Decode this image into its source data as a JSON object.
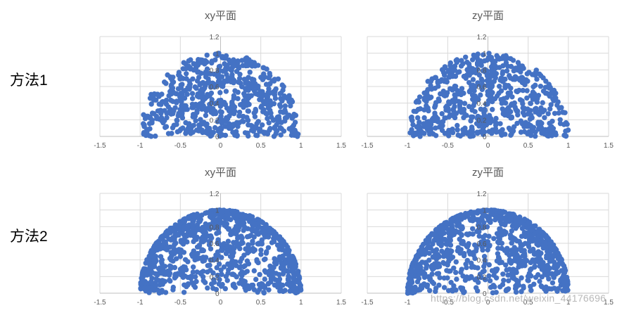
{
  "row_labels": [
    "方法1",
    "方法2"
  ],
  "watermark": "https://blog.csdn.net/weixin_44176696",
  "colors": {
    "point": "#4472c4",
    "grid": "#d9d9d9",
    "text": "#595959"
  },
  "chart_data": [
    {
      "type": "scatter",
      "title": "xy平面",
      "xlim": [
        -1.5,
        1.5
      ],
      "ylim": [
        0,
        1.2
      ],
      "xticks": [
        "-1.5",
        "-1",
        "-0.5",
        "0",
        "0.5",
        "1",
        "1.5"
      ],
      "yticks": [
        "0",
        "0.2",
        "0.4",
        "0.6",
        "0.8",
        "1",
        "1.2"
      ],
      "grid": true,
      "legend": "none",
      "series_color": "#4472c4",
      "method": "uniform",
      "point_count": 650,
      "seed": 11
    },
    {
      "type": "scatter",
      "title": "zy平面",
      "xlim": [
        -1.5,
        1.5
      ],
      "ylim": [
        0,
        1.2
      ],
      "xticks": [
        "-1.5",
        "-1",
        "-0.5",
        "0",
        "0.5",
        "1",
        "1.5"
      ],
      "yticks": [
        "0",
        "0.2",
        "0.4",
        "0.6",
        "0.8",
        "1",
        "1.2"
      ],
      "grid": true,
      "legend": "none",
      "series_color": "#4472c4",
      "method": "uniform",
      "point_count": 650,
      "seed": 23
    },
    {
      "type": "scatter",
      "title": "xy平面",
      "xlim": [
        -1.5,
        1.5
      ],
      "ylim": [
        0,
        1.2
      ],
      "xticks": [
        "-1.5",
        "-1",
        "-0.5",
        "0",
        "0.5",
        "1",
        "1.5"
      ],
      "yticks": [
        "0",
        "0.2",
        "0.4",
        "0.6",
        "0.8",
        "1",
        "1.2"
      ],
      "grid": true,
      "legend": "none",
      "series_color": "#4472c4",
      "method": "shell",
      "point_count": 900,
      "seed": 37
    },
    {
      "type": "scatter",
      "title": "zy平面",
      "xlim": [
        -1.5,
        1.5
      ],
      "ylim": [
        0,
        1.2
      ],
      "xticks": [
        "-1.5",
        "-1",
        "-0.5",
        "0",
        "0.5",
        "1",
        "1.5"
      ],
      "yticks": [
        "0",
        "0.2",
        "0.4",
        "0.6",
        "0.8",
        "1",
        "1.2"
      ],
      "grid": true,
      "legend": "none",
      "series_color": "#4472c4",
      "method": "shell",
      "point_count": 900,
      "seed": 53
    }
  ]
}
